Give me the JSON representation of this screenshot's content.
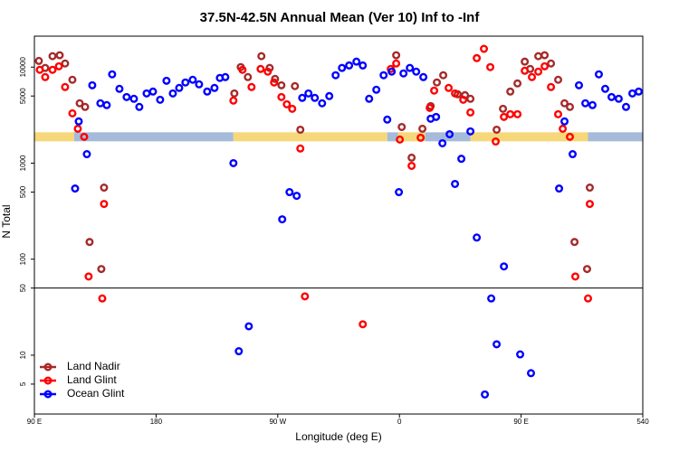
{
  "chart_data": {
    "type": "scatter",
    "title": "37.5N-42.5N Annual Mean (Ver 10)   Inf to -Inf",
    "x_label": "Longitude (deg E)",
    "y_label": "N Total",
    "log_y": true,
    "xlim": [
      90,
      540
    ],
    "ylim": [
      2.44,
      21000
    ],
    "xticks": [
      {
        "value": 90,
        "label": "90 E"
      },
      180,
      {
        "value": 270,
        "label": "90 W"
      },
      {
        "value": 360,
        "label": "0"
      },
      {
        "value": 450,
        "label": "90 E"
      },
      540
    ],
    "yticks": [
      5,
      10,
      50,
      100,
      500,
      1000,
      5000,
      10000
    ],
    "hline": 50,
    "legend_position": "bottom-left",
    "surface_band": {
      "value": 1880,
      "segments": [
        {
          "start": 90,
          "end": 119.4,
          "color": "#f6d77a"
        },
        {
          "start": 119.4,
          "end": 237.2,
          "color": "#a5bbd9"
        },
        {
          "start": 237.2,
          "end": 351,
          "color": "#f6d77a"
        },
        {
          "start": 351,
          "end": 359,
          "color": "#a5bbd9"
        },
        {
          "start": 359,
          "end": 379,
          "color": "#f6d77a"
        },
        {
          "start": 379,
          "end": 412.5,
          "color": "#a5bbd9"
        },
        {
          "start": 412.5,
          "end": 499.5,
          "color": "#f6d77a"
        },
        {
          "start": 499.5,
          "end": 540,
          "color": "#a5bbd9"
        }
      ]
    },
    "series": [
      {
        "name": "Land Nadir",
        "color": "#a52a2a",
        "x": [
          93.3,
          98.0,
          103.4,
          108.7,
          112.7,
          118.1,
          123.5,
          127.5,
          130.8,
          139.5,
          141.5,
          237.9,
          242.6,
          247.9,
          257.9,
          264.0,
          268.0,
          272.7,
          282.7,
          286.7,
          357.6,
          361.7,
          369.0,
          377.0,
          383.1,
          387.7,
          392.4,
          403.1,
          408.5,
          412.5,
          431.9,
          436.6,
          442.0,
          447.3,
          452.7,
          456.7,
          462.7,
          467.4,
          472.1,
          477.4,
          482.1,
          486.1,
          489.5,
          498.8,
          500.8
        ],
        "values": [
          11600,
          9800,
          13000,
          13300,
          10900,
          7380,
          4200,
          3850,
          151,
          79,
          556,
          5320,
          10000,
          7870,
          13000,
          9800,
          7540,
          6470,
          6340,
          2230,
          13300,
          2380,
          1140,
          2280,
          3930,
          6920,
          8230,
          5210,
          5100,
          4680,
          2230,
          3680,
          5560,
          6760,
          11400,
          9570,
          13000,
          13300,
          10900,
          7380,
          4200,
          3850,
          151,
          79,
          556
        ]
      },
      {
        "name": "Land Glint",
        "color": "#ff0000",
        "x": [
          94.0,
          98.0,
          103.4,
          108.1,
          112.7,
          118.1,
          122.1,
          126.8,
          130.1,
          140.2,
          141.5,
          237.2,
          243.9,
          250.6,
          257.3,
          262.6,
          267.3,
          272.7,
          276.7,
          280.7,
          286.7,
          290.1,
          332.9,
          353.6,
          357.6,
          360.3,
          369.0,
          375.7,
          382.4,
          385.7,
          396.4,
          401.1,
          407.2,
          412.5,
          417.2,
          422.5,
          427.2,
          431.2,
          437.3,
          442.0,
          447.3,
          452.7,
          458.0,
          462.7,
          467.4,
          472.1,
          477.4,
          480.8,
          486.1,
          490.1,
          499.5,
          500.8
        ],
        "values": [
          9370,
          7870,
          9370,
          10200,
          6200,
          3300,
          2280,
          1880,
          66,
          39,
          376,
          4480,
          9370,
          6200,
          9570,
          8970,
          6920,
          4880,
          4100,
          3680,
          1420,
          41,
          21,
          9570,
          10900,
          1760,
          937,
          1840,
          3760,
          5690,
          6070,
          5320,
          4570,
          3370,
          12400,
          15500,
          10000,
          1680,
          3030,
          3230,
          3230,
          9160,
          7870,
          8970,
          10200,
          6200,
          3230,
          2280,
          1880,
          66,
          39,
          376
        ]
      },
      {
        "name": "Ocean Glint",
        "color": "#0000ff",
        "x": [
          120.1,
          122.8,
          128.8,
          132.8,
          138.8,
          143.5,
          147.5,
          152.9,
          158.2,
          163.6,
          167.6,
          173.0,
          177.7,
          183.0,
          187.7,
          192.4,
          197.1,
          201.7,
          207.1,
          211.8,
          217.8,
          223.2,
          227.2,
          231.2,
          237.2,
          241.2,
          248.6,
          273.3,
          278.7,
          284.0,
          288.1,
          292.7,
          297.4,
          302.8,
          308.1,
          312.8,
          317.5,
          322.8,
          328.2,
          332.9,
          337.6,
          342.9,
          348.3,
          351.0,
          354.3,
          359.6,
          363.0,
          367.7,
          372.4,
          377.7,
          383.1,
          387.1,
          391.8,
          397.1,
          401.1,
          405.8,
          412.5,
          417.2,
          423.2,
          427.9,
          431.9,
          437.3,
          449.3,
          457.3,
          478.1,
          482.1,
          488.1,
          492.8,
          497.5,
          502.8,
          507.5,
          512.2,
          516.9,
          522.2,
          527.6,
          532.3,
          537.0
        ],
        "values": [
          544,
          2720,
          1240,
          6470,
          4200,
          4020,
          8410,
          5940,
          4880,
          4680,
          3850,
          5320,
          5560,
          4570,
          7210,
          5320,
          6070,
          6920,
          7380,
          6620,
          5560,
          6070,
          7710,
          7870,
          1000,
          11,
          20,
          260,
          499,
          457,
          4780,
          5320,
          4780,
          4200,
          4990,
          8230,
          9800,
          10400,
          11400,
          10400,
          4680,
          5810,
          8230,
          2840,
          8970,
          499,
          8590,
          9800,
          8970,
          7870,
          2900,
          3030,
          1610,
          2000,
          607,
          1110,
          2140,
          168,
          3.9,
          39,
          13,
          84,
          10.2,
          6.5,
          544,
          2720,
          1240,
          6470,
          4200,
          4020,
          8410,
          5940,
          4880,
          4680,
          3850,
          5320,
          5560
        ]
      }
    ]
  }
}
